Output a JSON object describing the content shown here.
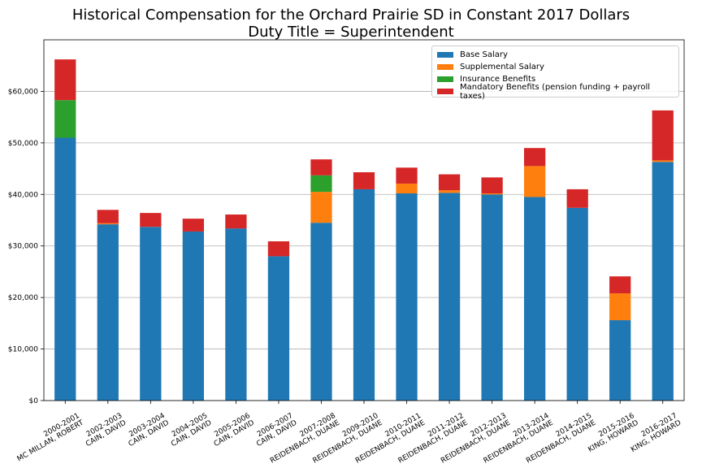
{
  "chart_data": {
    "type": "bar",
    "stacked": true,
    "title": "Historical Compensation for the Orchard Prairie SD in Constant 2017 Dollars",
    "subtitle": "Duty Title = Superintendent",
    "xlabel": "",
    "ylabel": "",
    "ylim": [
      0,
      70000
    ],
    "yticks": [
      "$0",
      "$10,000",
      "$20,000",
      "$30,000",
      "$40,000",
      "$50,000",
      "$60,000"
    ],
    "grid": "horizontal",
    "legend_position": "top-right",
    "categories": [
      [
        "2000-2001",
        "MC MILLAN, ROBERT"
      ],
      [
        "2002-2003",
        "CAIN, DAVID"
      ],
      [
        "2003-2004",
        "CAIN, DAVID"
      ],
      [
        "2004-2005",
        "CAIN, DAVID"
      ],
      [
        "2005-2006",
        "CAIN, DAVID"
      ],
      [
        "2006-2007",
        "CAIN, DAVID"
      ],
      [
        "2007-2008",
        "REIDENBACH, DUANE"
      ],
      [
        "2009-2010",
        "REIDENBACH, DUANE"
      ],
      [
        "2010-2011",
        "REIDENBACH, DUANE"
      ],
      [
        "2011-2012",
        "REIDENBACH, DUANE"
      ],
      [
        "2012-2013",
        "REIDENBACH, DUANE"
      ],
      [
        "2013-2014",
        "REIDENBACH, DUANE"
      ],
      [
        "2014-2015",
        "REIDENBACH, DUANE"
      ],
      [
        "2015-2016",
        "KING, HOWARD"
      ],
      [
        "2016-2017",
        "KING, HOWARD"
      ]
    ],
    "series": [
      {
        "name": "Base Salary",
        "color": "#1f77b4",
        "values": [
          51000,
          34200,
          33700,
          32800,
          33400,
          28000,
          34500,
          41000,
          40200,
          40300,
          40000,
          39500,
          37400,
          15600,
          46300
        ]
      },
      {
        "name": "Supplemental Salary",
        "color": "#ff7f0e",
        "values": [
          0,
          200,
          0,
          0,
          0,
          0,
          6000,
          0,
          1900,
          500,
          200,
          6000,
          0,
          5200,
          300
        ]
      },
      {
        "name": "Insurance Benefits",
        "color": "#2ca02c",
        "values": [
          7300,
          0,
          0,
          0,
          0,
          0,
          3200,
          0,
          0,
          0,
          0,
          0,
          0,
          0,
          0
        ]
      },
      {
        "name": "Mandatory Benefits (pension funding + payroll taxes)",
        "color": "#d62728",
        "values": [
          7900,
          2600,
          2700,
          2500,
          2700,
          2900,
          3100,
          3300,
          3100,
          3100,
          3100,
          3500,
          3600,
          3300,
          9700
        ]
      }
    ]
  }
}
